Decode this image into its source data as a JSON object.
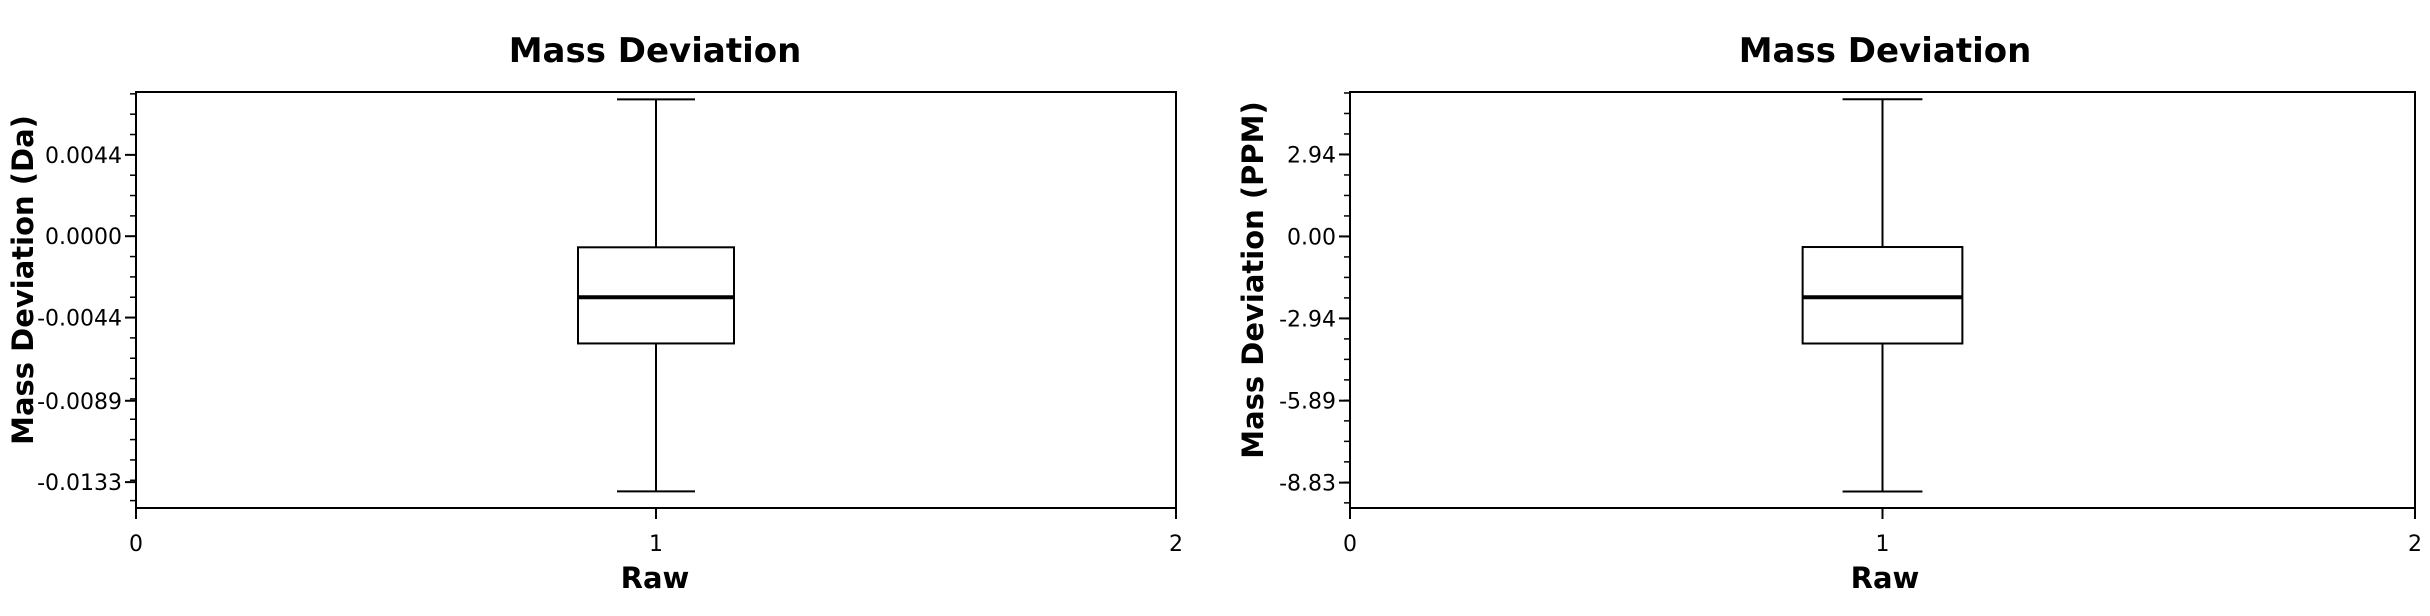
{
  "chart_data": [
    {
      "type": "box",
      "title": "Mass Deviation",
      "xlabel": "Raw",
      "ylabel": "Mass Deviation (Da)",
      "x_ticks": [
        "0",
        "1",
        "2"
      ],
      "xlim": [
        0,
        2
      ],
      "y_ticks": [
        "0.0044",
        "0.0000",
        "-0.0044",
        "-0.0089",
        "-0.0133"
      ],
      "y_tick_values": [
        0.0044,
        0.0,
        -0.0044,
        -0.0089,
        -0.0133
      ],
      "ylim": [
        -0.0147,
        0.0078
      ],
      "boxes": [
        {
          "x": 1,
          "whisker_low": -0.0138,
          "q1": -0.0058,
          "median": -0.0033,
          "q3": -0.0006,
          "whisker_high": 0.0074
        }
      ],
      "grid": false,
      "legend": "none"
    },
    {
      "type": "box",
      "title": "Mass Deviation",
      "xlabel": "Raw",
      "ylabel": "Mass Deviation (PPM)",
      "x_ticks": [
        "0",
        "1",
        "2"
      ],
      "xlim": [
        0,
        2
      ],
      "y_ticks": [
        "2.94",
        "0.00",
        "-2.94",
        "-5.89",
        "-8.83"
      ],
      "y_tick_values": [
        2.94,
        0.0,
        -2.94,
        -5.89,
        -8.83
      ],
      "ylim": [
        -9.74,
        5.18
      ],
      "boxes": [
        {
          "x": 1,
          "whisker_low": -9.15,
          "q1": -3.84,
          "median": -2.18,
          "q3": -0.38,
          "whisker_high": 4.92
        }
      ],
      "grid": false,
      "legend": "none"
    }
  ]
}
